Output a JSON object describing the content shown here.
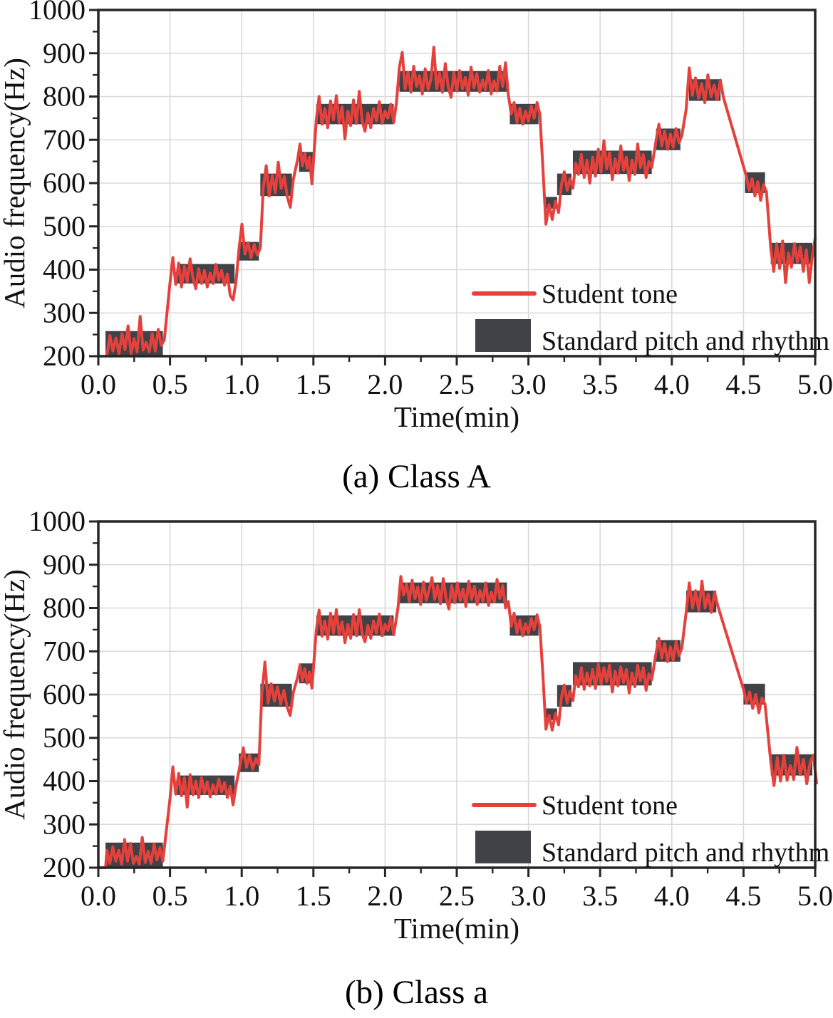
{
  "colors": {
    "student_tone": "#e5413c",
    "standard_band": "#404247",
    "grid": "#d9d9d9",
    "frame": "#262626",
    "text": "#111111"
  },
  "chart_data": [
    {
      "type": "line",
      "panel": "a",
      "caption": "(a) Class A",
      "xlabel": "Time(min)",
      "ylabel": "Audio frequency(Hz)",
      "xlim": [
        0,
        5
      ],
      "ylim": [
        200,
        1000
      ],
      "grid": true,
      "x_ticks": [
        0,
        0.5,
        1,
        1.5,
        2,
        2.5,
        3,
        3.5,
        4,
        4.5,
        5
      ],
      "x_tick_labels": [
        "0.0",
        "0.5",
        "1.0",
        "1.5",
        "2.0",
        "2.5",
        "3.0",
        "3.5",
        "4.0",
        "4.5",
        "5.0"
      ],
      "x_minor_step": 0.25,
      "y_ticks": [
        200,
        300,
        400,
        500,
        600,
        700,
        800,
        900,
        1000
      ],
      "y_tick_labels": [
        "200",
        "300",
        "400",
        "500",
        "600",
        "700",
        "800",
        "900",
        "1000"
      ],
      "y_minor_step": 50,
      "legend": [
        {
          "label": "Student tone",
          "swatch": "line"
        },
        {
          "label": "Standard pitch and rhythm",
          "swatch": "box"
        }
      ],
      "bands": [
        [
          0.05,
          0.45,
          202,
          258
        ],
        [
          0.55,
          0.95,
          368,
          413
        ],
        [
          0.98,
          1.12,
          421,
          464
        ],
        [
          1.13,
          1.35,
          570,
          622
        ],
        [
          1.4,
          1.5,
          626,
          672
        ],
        [
          1.52,
          2.06,
          736,
          783
        ],
        [
          2.1,
          2.85,
          811,
          859
        ],
        [
          2.87,
          3.07,
          736,
          783
        ],
        [
          3.11,
          3.2,
          541,
          568
        ],
        [
          3.2,
          3.3,
          572,
          622
        ],
        [
          3.31,
          3.86,
          621,
          675
        ],
        [
          3.89,
          4.06,
          676,
          726
        ],
        [
          4.12,
          4.34,
          790,
          840
        ],
        [
          4.51,
          4.65,
          577,
          625
        ],
        [
          4.69,
          4.98,
          413,
          462
        ]
      ],
      "line_segments": [
        {
          "t0": 0.06,
          "t1": 0.46,
          "values": [
            202,
            248,
            212,
            242,
            206,
            252,
            215,
            270,
            206,
            240,
            210,
            292,
            214,
            232,
            210,
            252,
            212,
            262,
            225,
            238
          ]
        },
        {
          "t0": 0.5,
          "t1": 0.96,
          "values": [
            370,
            428,
            366,
            415,
            360,
            408,
            372,
            425,
            380,
            356,
            402,
            368,
            398,
            360,
            392,
            368,
            412,
            376,
            398,
            364,
            390,
            340,
            330,
            372
          ]
        },
        {
          "t0": 0.98,
          "t1": 1.13,
          "values": [
            445,
            505,
            436,
            462,
            428,
            458,
            434,
            450
          ]
        },
        {
          "t0": 1.15,
          "t1": 1.36,
          "values": [
            588,
            640,
            570,
            618,
            578,
            648,
            588,
            615,
            568,
            544,
            608
          ]
        },
        {
          "t0": 1.39,
          "t1": 1.49,
          "values": [
            655,
            690,
            640,
            668,
            634,
            660,
            598
          ]
        },
        {
          "t0": 1.52,
          "t1": 2.06,
          "values": [
            745,
            800,
            736,
            772,
            728,
            790,
            746,
            802,
            740,
            776,
            702,
            766,
            733,
            792,
            738,
            812,
            744,
            720,
            762,
            728,
            772,
            744,
            788,
            738,
            766,
            750,
            782,
            740
          ]
        },
        {
          "t0": 2.08,
          "t1": 2.86,
          "values": [
            788,
            868,
            902,
            818,
            856,
            810,
            870,
            823,
            848,
            806,
            864,
            816,
            840,
            914,
            818,
            854,
            810,
            876,
            823,
            798,
            856,
            813,
            860,
            818,
            844,
            803,
            868,
            820,
            853,
            810,
            838,
            816,
            860,
            806,
            836,
            813,
            870,
            823,
            878,
            803
          ]
        },
        {
          "t0": 2.88,
          "t1": 3.08,
          "values": [
            760,
            786,
            740,
            773,
            736,
            766,
            743,
            778,
            750,
            786,
            758
          ]
        },
        {
          "t0": 3.1,
          "t1": 3.21,
          "values": [
            640,
            505,
            550,
            516,
            558,
            532
          ]
        },
        {
          "t0": 3.23,
          "t1": 3.31,
          "values": [
            596,
            626,
            583,
            610,
            588
          ]
        },
        {
          "t0": 3.33,
          "t1": 3.86,
          "values": [
            646,
            620,
            666,
            613,
            653,
            600,
            660,
            616,
            678,
            626,
            698,
            633,
            670,
            608,
            656,
            623,
            686,
            630,
            660,
            606,
            653,
            620,
            690,
            636,
            666,
            613,
            650,
            636
          ]
        },
        {
          "t0": 3.89,
          "t1": 4.07,
          "values": [
            698,
            736,
            686,
            720,
            678,
            713,
            683,
            726,
            693,
            710
          ]
        },
        {
          "t0": 4.1,
          "t1": 4.36,
          "values": [
            770,
            866,
            803,
            843,
            796,
            830,
            786,
            850,
            800,
            826,
            793,
            838,
            798
          ]
        },
        {
          "t0": 4.52,
          "t1": 4.66,
          "values": [
            616,
            583,
            610,
            570,
            603,
            560,
            596,
            580
          ]
        },
        {
          "t0": 4.69,
          "t1": 5.0,
          "values": [
            450,
            396,
            460,
            403,
            466,
            370,
            438,
            406,
            460,
            418,
            453,
            396,
            446,
            370,
            428,
            473
          ]
        }
      ]
    },
    {
      "type": "line",
      "panel": "b",
      "caption": "(b) Class a",
      "xlabel": "Time(min)",
      "ylabel": "Audio frequency(Hz)",
      "xlim": [
        0,
        5
      ],
      "ylim": [
        200,
        1000
      ],
      "grid": true,
      "x_ticks": [
        0,
        0.5,
        1,
        1.5,
        2,
        2.5,
        3,
        3.5,
        4,
        4.5,
        5
      ],
      "x_tick_labels": [
        "0.0",
        "0.5",
        "1.0",
        "1.5",
        "2.0",
        "2.5",
        "3.0",
        "3.5",
        "4.0",
        "4.5",
        "5.0"
      ],
      "x_minor_step": 0.25,
      "y_ticks": [
        200,
        300,
        400,
        500,
        600,
        700,
        800,
        900,
        1000
      ],
      "y_tick_labels": [
        "200",
        "300",
        "400",
        "500",
        "600",
        "700",
        "800",
        "900",
        "1000"
      ],
      "y_minor_step": 50,
      "legend": [
        {
          "label": "Student tone",
          "swatch": "line"
        },
        {
          "label": "Standard pitch and rhythm",
          "swatch": "box"
        }
      ],
      "bands": [
        [
          0.05,
          0.45,
          202,
          258
        ],
        [
          0.55,
          0.95,
          368,
          413
        ],
        [
          0.98,
          1.12,
          421,
          464
        ],
        [
          1.13,
          1.35,
          572,
          625
        ],
        [
          1.4,
          1.5,
          626,
          672
        ],
        [
          1.52,
          2.06,
          736,
          783
        ],
        [
          2.1,
          2.85,
          811,
          859
        ],
        [
          2.87,
          3.07,
          736,
          783
        ],
        [
          3.11,
          3.2,
          541,
          568
        ],
        [
          3.2,
          3.3,
          572,
          622
        ],
        [
          3.31,
          3.86,
          621,
          675
        ],
        [
          3.89,
          4.06,
          676,
          726
        ],
        [
          4.1,
          4.31,
          790,
          840
        ],
        [
          4.5,
          4.65,
          577,
          625
        ],
        [
          4.69,
          4.98,
          413,
          462
        ]
      ],
      "line_segments": [
        {
          "t0": 0.0,
          "t1": 0.05,
          "values": [
            200,
            200
          ]
        },
        {
          "t0": 0.06,
          "t1": 0.45,
          "values": [
            240,
            210,
            248,
            215,
            240,
            208,
            265,
            215,
            256,
            210,
            226,
            208,
            270,
            212,
            238,
            210,
            255,
            218,
            246,
            215
          ]
        },
        {
          "t0": 0.5,
          "t1": 0.96,
          "values": [
            360,
            433,
            370,
            418,
            366,
            408,
            340,
            415,
            368,
            400,
            362,
            408,
            372,
            398,
            364,
            392,
            370,
            405,
            375,
            396,
            362,
            388,
            345,
            390
          ]
        },
        {
          "t0": 0.99,
          "t1": 1.12,
          "values": [
            440,
            477,
            432,
            460,
            428,
            452,
            438
          ]
        },
        {
          "t0": 1.14,
          "t1": 1.36,
          "values": [
            600,
            675,
            580,
            625,
            585,
            618,
            578,
            610,
            572,
            552,
            605
          ]
        },
        {
          "t0": 1.39,
          "t1": 1.49,
          "values": [
            640,
            668,
            632,
            660,
            626,
            652,
            615
          ]
        },
        {
          "t0": 1.52,
          "t1": 2.06,
          "values": [
            748,
            795,
            735,
            770,
            728,
            788,
            742,
            796,
            738,
            768,
            720,
            762,
            730,
            785,
            736,
            796,
            740,
            722,
            760,
            730,
            770,
            742,
            786,
            736,
            762,
            748,
            778,
            738
          ]
        },
        {
          "t0": 2.09,
          "t1": 2.86,
          "values": [
            800,
            873,
            830,
            856,
            816,
            864,
            822,
            848,
            808,
            860,
            818,
            842,
            870,
            820,
            852,
            810,
            868,
            822,
            798,
            852,
            812,
            858,
            818,
            844,
            804,
            862,
            820,
            850,
            808,
            840,
            816,
            858,
            806,
            836,
            814,
            866,
            822,
            852,
            800,
            815
          ]
        },
        {
          "t0": 2.88,
          "t1": 3.08,
          "values": [
            758,
            788,
            742,
            772,
            736,
            764,
            742,
            776,
            750,
            784,
            756
          ]
        },
        {
          "t0": 3.1,
          "t1": 3.21,
          "values": [
            650,
            520,
            552,
            518,
            556,
            530
          ]
        },
        {
          "t0": 3.23,
          "t1": 3.31,
          "values": [
            594,
            622,
            580,
            608,
            586
          ]
        },
        {
          "t0": 3.33,
          "t1": 3.86,
          "values": [
            644,
            618,
            662,
            612,
            650,
            620,
            658,
            614,
            670,
            624,
            662,
            630,
            668,
            606,
            654,
            620,
            664,
            628,
            658,
            604,
            650,
            618,
            668,
            632,
            662,
            610,
            648,
            634
          ]
        },
        {
          "t0": 3.89,
          "t1": 4.07,
          "values": [
            696,
            730,
            684,
            718,
            676,
            710,
            680,
            722,
            690,
            708
          ]
        },
        {
          "t0": 4.1,
          "t1": 4.32,
          "values": [
            790,
            858,
            800,
            840,
            794,
            862,
            800,
            832,
            790,
            836,
            806
          ]
        },
        {
          "t0": 4.5,
          "t1": 4.65,
          "values": [
            612,
            580,
            606,
            568,
            600,
            558,
            592,
            578
          ]
        },
        {
          "t0": 4.69,
          "t1": 5.01,
          "values": [
            446,
            390,
            455,
            400,
            460,
            402,
            436,
            404,
            478,
            415,
            450,
            394,
            442,
            460,
            396
          ]
        }
      ]
    }
  ]
}
